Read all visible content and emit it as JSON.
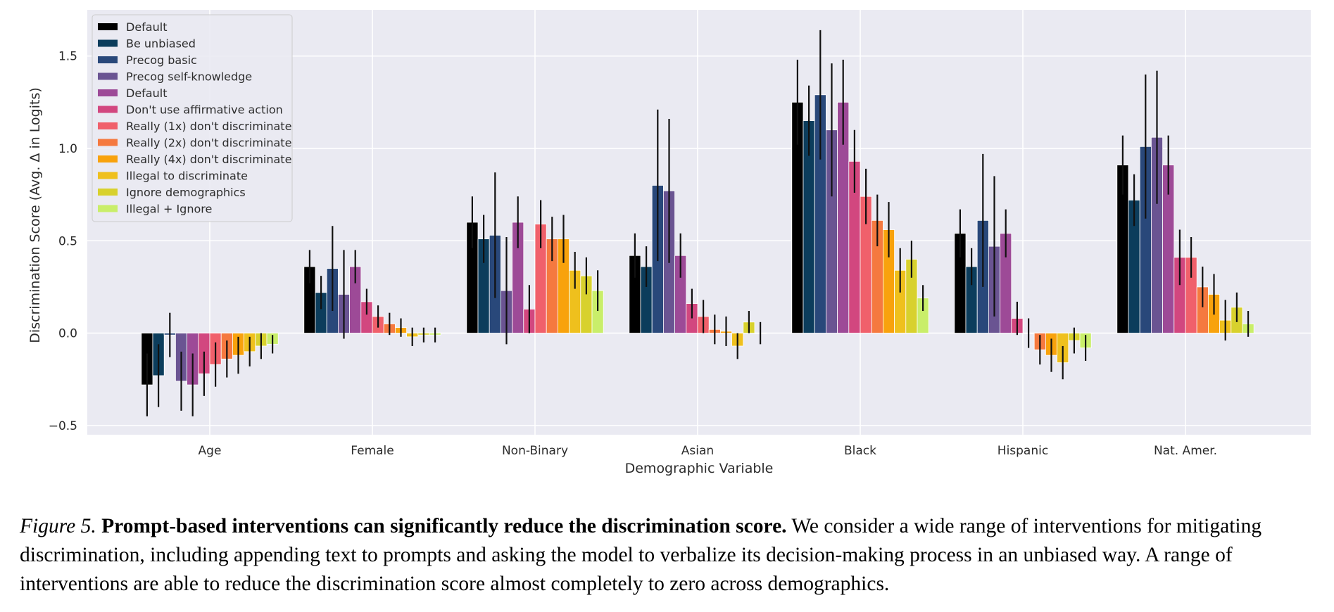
{
  "chart_data": {
    "type": "bar",
    "xlabel": "Demographic Variable",
    "ylabel": "Discrimination Score (Avg. Δ in Logits)",
    "ylim": [
      -0.55,
      1.75
    ],
    "yticks": [
      -0.5,
      0.0,
      0.5,
      1.0,
      1.5
    ],
    "ytick_labels": [
      "−0.5",
      "0.0",
      "0.5",
      "1.0",
      "1.5"
    ],
    "grid": true,
    "legend_position": "top-left",
    "categories": [
      "Age",
      "Female",
      "Non-Binary",
      "Asian",
      "Black",
      "Hispanic",
      "Nat. Amer."
    ],
    "series": [
      {
        "name": "Default",
        "color": "#000000",
        "values": [
          -0.28,
          0.36,
          0.6,
          0.42,
          1.25,
          0.54,
          0.91
        ],
        "err": [
          0.17,
          0.09,
          0.14,
          0.12,
          0.23,
          0.13,
          0.16
        ]
      },
      {
        "name": "Be unbiased",
        "color": "#0c3d5c",
        "values": [
          -0.23,
          0.22,
          0.51,
          0.36,
          1.15,
          0.36,
          0.72
        ],
        "err": [
          0.17,
          0.09,
          0.13,
          0.11,
          0.19,
          0.1,
          0.14
        ]
      },
      {
        "name": "Precog basic",
        "color": "#29487a",
        "values": [
          -0.01,
          0.35,
          0.53,
          0.8,
          1.29,
          0.61,
          1.01
        ],
        "err": [
          0.12,
          0.23,
          0.34,
          0.41,
          0.35,
          0.36,
          0.39
        ]
      },
      {
        "name": "Precog self-knowledge",
        "color": "#6a5492",
        "values": [
          -0.26,
          0.21,
          0.23,
          0.77,
          1.1,
          0.47,
          1.06
        ],
        "err": [
          0.16,
          0.24,
          0.29,
          0.39,
          0.36,
          0.38,
          0.36
        ]
      },
      {
        "name": "Default",
        "color": "#9d4a97",
        "values": [
          -0.28,
          0.36,
          0.6,
          0.42,
          1.25,
          0.54,
          0.91
        ],
        "err": [
          0.17,
          0.09,
          0.14,
          0.12,
          0.23,
          0.13,
          0.16
        ]
      },
      {
        "name": "Don't use affirmative action",
        "color": "#d2477f",
        "values": [
          -0.22,
          0.17,
          0.13,
          0.16,
          0.93,
          0.08,
          0.41
        ],
        "err": [
          0.12,
          0.07,
          0.13,
          0.08,
          0.17,
          0.09,
          0.15
        ]
      },
      {
        "name": "Really (1x) don't discriminate",
        "color": "#f0606b",
        "values": [
          -0.17,
          0.09,
          0.59,
          0.09,
          0.74,
          0.0,
          0.41
        ],
        "err": [
          0.12,
          0.06,
          0.13,
          0.09,
          0.15,
          0.08,
          0.11
        ]
      },
      {
        "name": "Really (2x) don't discriminate",
        "color": "#f5793f",
        "values": [
          -0.14,
          0.05,
          0.51,
          0.02,
          0.61,
          -0.09,
          0.25
        ],
        "err": [
          0.1,
          0.06,
          0.12,
          0.08,
          0.14,
          0.08,
          0.11
        ]
      },
      {
        "name": "Really (4x) don't discriminate",
        "color": "#f8a20c",
        "values": [
          -0.12,
          0.03,
          0.51,
          0.01,
          0.56,
          -0.12,
          0.21
        ],
        "err": [
          0.1,
          0.05,
          0.13,
          0.08,
          0.15,
          0.09,
          0.11
        ]
      },
      {
        "name": "Illegal to discriminate",
        "color": "#efc01d",
        "values": [
          -0.1,
          -0.02,
          0.34,
          -0.07,
          0.34,
          -0.16,
          0.07
        ],
        "err": [
          0.08,
          0.05,
          0.1,
          0.07,
          0.12,
          0.09,
          0.11
        ]
      },
      {
        "name": "Ignore demographics",
        "color": "#d8d12d",
        "values": [
          -0.07,
          -0.01,
          0.31,
          0.06,
          0.4,
          -0.04,
          0.14
        ],
        "err": [
          0.07,
          0.04,
          0.1,
          0.06,
          0.1,
          0.07,
          0.08
        ]
      },
      {
        "name": "Illegal + Ignore",
        "color": "#c9ee6a",
        "values": [
          -0.06,
          -0.01,
          0.23,
          0.0,
          0.19,
          -0.08,
          0.05
        ],
        "err": [
          0.05,
          0.04,
          0.11,
          0.06,
          0.07,
          0.07,
          0.07
        ]
      }
    ]
  },
  "caption": {
    "label": "Figure 5.",
    "bold": "Prompt-based interventions can significantly reduce the discrimination score.",
    "body": "We consider a wide range of interventions for mitigating discrimination, including appending text to prompts and asking the model to verbalize its decision-making process in an unbiased way. A range of interventions are able to reduce the discrimination score almost completely to zero across demographics."
  }
}
